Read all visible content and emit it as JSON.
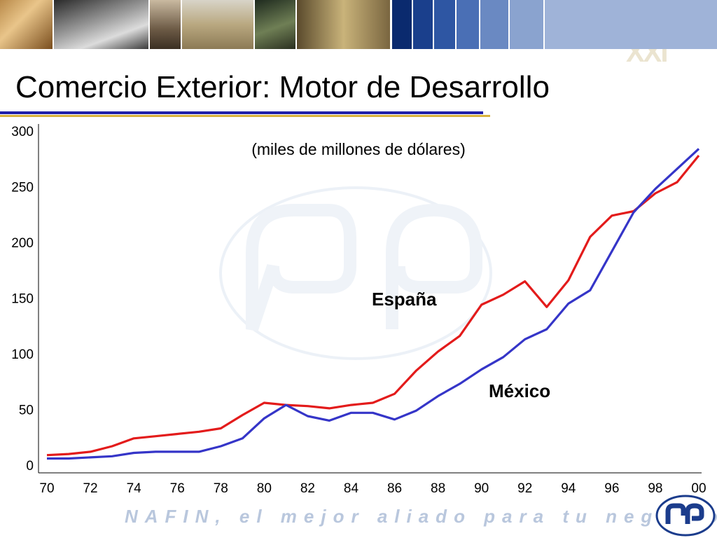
{
  "page": {
    "title": "Comercio Exterior: Motor de Desarrollo",
    "tagline": "NAFIN, el mejor aliado para tu negocio",
    "banner_text": "siglo XXI",
    "colors": {
      "rule_blue": "#1f1fa8",
      "rule_gold": "#d8b23c",
      "banner_stripes": [
        "#0a2a6e",
        "#1a3f8c",
        "#2e56a3",
        "#4a6fb5",
        "#6a89c2",
        "#8aa3cf"
      ]
    },
    "icons": [
      "nafin-logo-icon",
      "watermark-logo-icon"
    ]
  },
  "chart_data": {
    "type": "line",
    "subtitle": "(miles de millones de dólares)",
    "ylim": [
      0,
      300
    ],
    "yticks": [
      0,
      50,
      100,
      150,
      200,
      250,
      300
    ],
    "x_tick_labels": [
      "70",
      "72",
      "74",
      "76",
      "78",
      "80",
      "82",
      "84",
      "86",
      "88",
      "90",
      "92",
      "94",
      "96",
      "98",
      "00"
    ],
    "x": [
      1970,
      1971,
      1972,
      1973,
      1974,
      1975,
      1976,
      1977,
      1978,
      1979,
      1980,
      1981,
      1982,
      1983,
      1984,
      1985,
      1986,
      1987,
      1988,
      1989,
      1990,
      1991,
      1992,
      1993,
      1994,
      1995,
      1996,
      1997,
      1998,
      1999,
      2000
    ],
    "series": [
      {
        "name": "España",
        "color": "#e31b1b",
        "values": [
          9,
          10,
          12,
          17,
          24,
          26,
          28,
          30,
          33,
          45,
          56,
          54,
          53,
          51,
          54,
          56,
          64,
          85,
          102,
          116,
          144,
          153,
          165,
          142,
          166,
          205,
          224,
          228,
          244,
          254,
          278
        ]
      },
      {
        "name": "México",
        "color": "#3535c8",
        "values": [
          6,
          6,
          7,
          8,
          11,
          12,
          12,
          12,
          17,
          24,
          42,
          54,
          44,
          40,
          47,
          47,
          41,
          49,
          62,
          73,
          86,
          97,
          113,
          122,
          145,
          157,
          192,
          227,
          248,
          266,
          284
        ]
      }
    ],
    "grid": false,
    "legend": "inline labels"
  }
}
